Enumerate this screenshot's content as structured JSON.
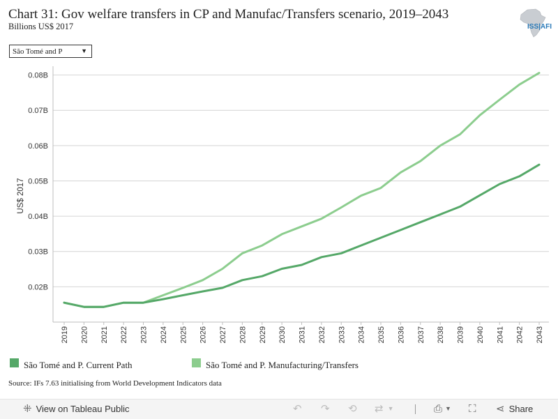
{
  "header": {
    "title": "Chart 31: Gov welfare transfers in CP and Manufac/Transfers scenario, 2019–2043",
    "subtitle": "Billions US$ 2017",
    "logo_text": "ISS|AFI"
  },
  "filter": {
    "selected": "São Tomé and P",
    "arrow_icon": "dropdown-triangle-icon"
  },
  "chart_data": {
    "type": "line",
    "ylabel": "US$ 2017",
    "xlabel": "",
    "ylim": [
      0.01,
      0.0815
    ],
    "y_ticks": [
      0.02,
      0.03,
      0.04,
      0.05,
      0.06,
      0.07,
      0.08
    ],
    "y_tick_labels": [
      "0.02B",
      "0.03B",
      "0.04B",
      "0.05B",
      "0.06B",
      "0.07B",
      "0.08B"
    ],
    "grid": true,
    "legend_position": "bottom",
    "x": [
      "2019",
      "2020",
      "2021",
      "2022",
      "2023",
      "2024",
      "2025",
      "2026",
      "2027",
      "2028",
      "2029",
      "2030",
      "2031",
      "2032",
      "2033",
      "2034",
      "2035",
      "2036",
      "2037",
      "2038",
      "2039",
      "2040",
      "2041",
      "2042",
      "2043"
    ],
    "series": [
      {
        "name": "São Tomé and P. Current Path",
        "color": "#55a868",
        "values": [
          0.0155,
          0.0143,
          0.0143,
          0.0155,
          0.0155,
          0.0165,
          0.0176,
          0.0187,
          0.0197,
          0.0219,
          0.023,
          0.0251,
          0.0262,
          0.0284,
          0.0295,
          0.0317,
          0.0339,
          0.0361,
          0.0383,
          0.0405,
          0.0427,
          0.0459,
          0.0491,
          0.0513,
          0.0546
        ]
      },
      {
        "name": "São Tomé and P. Manufacturing/Transfers",
        "color": "#8ccd8e",
        "values": [
          0.0155,
          0.0143,
          0.0143,
          0.0155,
          0.0155,
          0.0176,
          0.0197,
          0.0219,
          0.0251,
          0.0295,
          0.0317,
          0.0349,
          0.0371,
          0.0393,
          0.0425,
          0.0458,
          0.048,
          0.0524,
          0.0556,
          0.06,
          0.0632,
          0.0686,
          0.073,
          0.0773,
          0.0806
        ]
      }
    ]
  },
  "legend": {
    "items": [
      {
        "label": "São Tomé and P. Current Path",
        "color": "#55a868"
      },
      {
        "label": "São Tomé and P. Manufacturing/Transfers",
        "color": "#8ccd8e"
      }
    ]
  },
  "source": "Source: IFs 7.63 initialising from World Development Indicators data",
  "toolbar": {
    "view_label": "View on Tableau Public",
    "share_label": "Share",
    "icons": [
      "tableau-icon",
      "undo-icon",
      "redo-icon",
      "revert-icon",
      "refresh-icon",
      "download-icon",
      "fullscreen-icon",
      "share-icon"
    ]
  }
}
